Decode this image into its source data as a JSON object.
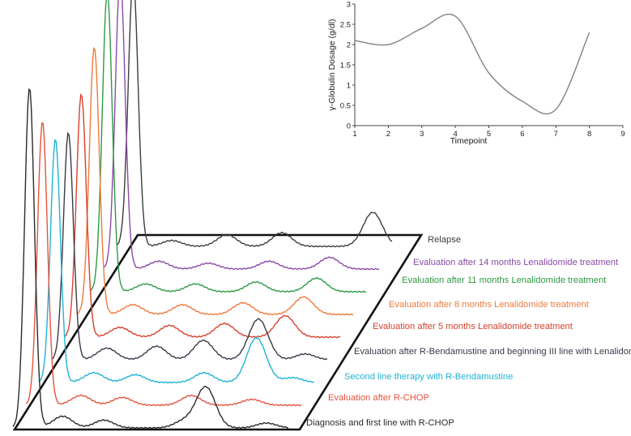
{
  "chart_data": [
    {
      "type": "line",
      "x": [
        1,
        2,
        3,
        4,
        5,
        6,
        7,
        8
      ],
      "series": [
        {
          "values": [
            2.1,
            2.0,
            2.4,
            2.7,
            1.3,
            0.6,
            0.4,
            2.3
          ]
        }
      ],
      "xlabel": "Timepoint",
      "ylabel": "γ-Globulin Dosage (g/dl)",
      "xlim": [
        1,
        9
      ],
      "ylim": [
        0,
        3
      ],
      "xticks": [
        "1",
        "2",
        "3",
        "4",
        "5",
        "6",
        "7",
        "8",
        "9"
      ],
      "yticks": [
        "0",
        "0.5",
        "1",
        "1.5",
        "2",
        "2.5",
        "3"
      ],
      "grid": false,
      "line_color": "#8a8a8a"
    },
    {
      "type": "line",
      "description_of_form": "stacked serum electrophoresis traces drawn on a tilted plane",
      "series": [
        {
          "name": "Diagnosis and first line with R-CHOP",
          "color": "#2b2b2b",
          "peaks": [
            [
              0.06,
              0.95
            ],
            [
              0.18,
              0.12
            ],
            [
              0.33,
              0.08
            ],
            [
              0.62,
              0.07
            ],
            [
              0.7,
              0.42
            ],
            [
              0.92,
              0.05
            ]
          ]
        },
        {
          "name": "Evaluation after R-CHOP",
          "color": "#e5533d",
          "peaks": [
            [
              0.06,
              1.0
            ],
            [
              0.2,
              0.1
            ],
            [
              0.35,
              0.08
            ],
            [
              0.6,
              0.1
            ],
            [
              0.82,
              0.06
            ]
          ]
        },
        {
          "name": "Second line therapy with R-Bendamustine",
          "color": "#1fb3d6",
          "peaks": [
            [
              0.06,
              1.0
            ],
            [
              0.2,
              0.1
            ],
            [
              0.35,
              0.08
            ],
            [
              0.6,
              0.1
            ],
            [
              0.79,
              0.46
            ],
            [
              0.92,
              0.05
            ]
          ]
        },
        {
          "name": "Evaluation after R-Bendamustine and beginning III line with Lenalidomide",
          "color": "#3a3a4a",
          "peaks": [
            [
              0.06,
              1.0
            ],
            [
              0.2,
              0.12
            ],
            [
              0.38,
              0.14
            ],
            [
              0.55,
              0.2
            ],
            [
              0.75,
              0.42
            ],
            [
              0.92,
              0.06
            ]
          ]
        },
        {
          "name": "Evaluation after 5 months Lenalidomide treatment",
          "color": "#d8402c",
          "peaks": [
            [
              0.06,
              1.0
            ],
            [
              0.2,
              0.1
            ],
            [
              0.38,
              0.12
            ],
            [
              0.58,
              0.14
            ],
            [
              0.8,
              0.22
            ]
          ]
        },
        {
          "name": "Evaluation after 8 months Lenalidomide treatment",
          "color": "#f07a3c",
          "peaks": [
            [
              0.06,
              1.0
            ],
            [
              0.2,
              0.1
            ],
            [
              0.38,
              0.1
            ],
            [
              0.6,
              0.12
            ],
            [
              0.82,
              0.18
            ]
          ]
        },
        {
          "name": "Evaluation after 11 months Lenalidomide treatment",
          "color": "#2e9a44",
          "peaks": [
            [
              0.06,
              1.0
            ],
            [
              0.2,
              0.08
            ],
            [
              0.38,
              0.08
            ],
            [
              0.6,
              0.1
            ],
            [
              0.82,
              0.14
            ]
          ]
        },
        {
          "name": "Evaluation after 14 months Lenalidomide treatment",
          "color": "#8a4aa8",
          "peaks": [
            [
              0.06,
              1.0
            ],
            [
              0.2,
              0.08
            ],
            [
              0.38,
              0.06
            ],
            [
              0.6,
              0.08
            ],
            [
              0.82,
              0.12
            ]
          ]
        },
        {
          "name": "Relapse",
          "color": "#3d3d3d",
          "peaks": [
            [
              0.06,
              1.0
            ],
            [
              0.2,
              0.06
            ],
            [
              0.4,
              0.12
            ],
            [
              0.6,
              0.14
            ],
            [
              0.93,
              0.35
            ]
          ]
        }
      ]
    }
  ]
}
